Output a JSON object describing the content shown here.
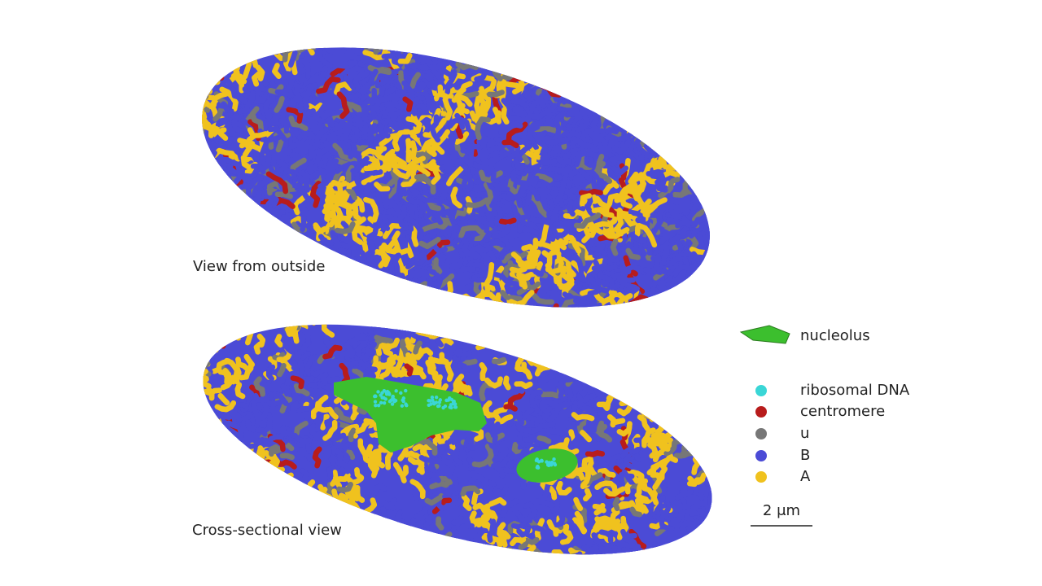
{
  "labels": {
    "outside": "View from outside",
    "cross_section": "Cross-sectional view"
  },
  "legend": [
    {
      "label": "nucleolus",
      "color": "#3cbf2e"
    },
    {
      "label": "ribosomal DNA",
      "color": "#3ad6d6"
    },
    {
      "label": "centromere",
      "color": "#b81c1c"
    },
    {
      "label": "u",
      "color": "#777777"
    },
    {
      "label": "B",
      "color": "#4b4bd6"
    },
    {
      "label": "A",
      "color": "#f0c21e"
    }
  ],
  "scale_bar": "2 μm"
}
